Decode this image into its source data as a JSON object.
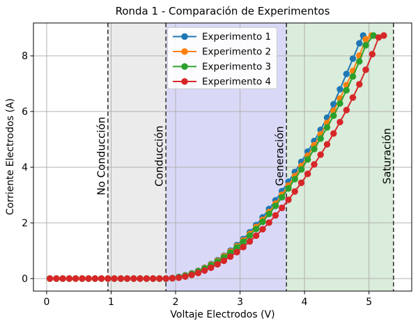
{
  "chart_data": {
    "type": "line",
    "title": "Ronda 1 - Comparación de Experimentos",
    "xlabel": "Voltaje Electrodos (V)",
    "ylabel": "Corriente Electrodos (A)",
    "xlim": [
      -0.205,
      5.663
    ],
    "ylim": [
      -0.45,
      9.18
    ],
    "xticks": [
      0,
      1,
      2,
      3,
      4,
      5
    ],
    "yticks": [
      0,
      2,
      4,
      6,
      8
    ],
    "grid": true,
    "grid_color": "#b0b0b0",
    "legend_position": "upper-left-inside",
    "regions": {
      "vline_color": "#333333",
      "label_center_i": 4.4,
      "boundaries": [
        {
          "label": "No Conducción",
          "v": 0.95
        },
        {
          "label": "Conducción",
          "v": 1.85
        },
        {
          "label": "Generación",
          "v": 3.72
        },
        {
          "label": "Saturación",
          "v": 5.38
        }
      ],
      "spans": [
        {
          "from": 0.95,
          "to": 1.85,
          "color": "#ebebeb"
        },
        {
          "from": 1.85,
          "to": 3.72,
          "color": "#d9d9f7"
        },
        {
          "from": 3.72,
          "to": 5.38,
          "color": "#daecdb"
        }
      ]
    },
    "series": [
      {
        "name": "Experimento 1",
        "color": "#1f77b4",
        "points": [
          [
            0.05,
            0
          ],
          [
            0.15,
            0
          ],
          [
            0.25,
            0
          ],
          [
            0.35,
            0
          ],
          [
            0.45,
            0
          ],
          [
            0.55,
            0
          ],
          [
            0.65,
            0
          ],
          [
            0.75,
            0
          ],
          [
            0.85,
            0
          ],
          [
            0.95,
            0
          ],
          [
            1.05,
            0
          ],
          [
            1.15,
            0
          ],
          [
            1.25,
            0
          ],
          [
            1.35,
            0
          ],
          [
            1.45,
            0
          ],
          [
            1.55,
            0
          ],
          [
            1.65,
            0
          ],
          [
            1.75,
            0
          ],
          [
            1.85,
            0
          ],
          [
            1.95,
            0.02
          ],
          [
            2.05,
            0.06
          ],
          [
            2.15,
            0.12
          ],
          [
            2.25,
            0.19
          ],
          [
            2.35,
            0.28
          ],
          [
            2.45,
            0.39
          ],
          [
            2.55,
            0.52
          ],
          [
            2.65,
            0.66
          ],
          [
            2.75,
            0.82
          ],
          [
            2.85,
            1.0
          ],
          [
            2.95,
            1.2
          ],
          [
            3.05,
            1.42
          ],
          [
            3.15,
            1.66
          ],
          [
            3.25,
            1.92
          ],
          [
            3.35,
            2.2
          ],
          [
            3.45,
            2.5
          ],
          [
            3.55,
            2.81
          ],
          [
            3.65,
            3.14
          ],
          [
            3.75,
            3.48
          ],
          [
            3.85,
            3.83
          ],
          [
            3.95,
            4.19
          ],
          [
            4.05,
            4.56
          ],
          [
            4.15,
            4.94
          ],
          [
            4.25,
            5.34
          ],
          [
            4.35,
            5.78
          ],
          [
            4.45,
            6.26
          ],
          [
            4.55,
            6.8
          ],
          [
            4.65,
            7.35
          ],
          [
            4.75,
            7.9
          ],
          [
            4.85,
            8.45
          ],
          [
            4.91,
            8.73
          ]
        ]
      },
      {
        "name": "Experimento 2",
        "color": "#ff7f0e",
        "points": [
          [
            0.05,
            0
          ],
          [
            0.15,
            0
          ],
          [
            0.25,
            0
          ],
          [
            0.35,
            0
          ],
          [
            0.45,
            0
          ],
          [
            0.55,
            0
          ],
          [
            0.65,
            0
          ],
          [
            0.75,
            0
          ],
          [
            0.85,
            0
          ],
          [
            0.95,
            0
          ],
          [
            1.05,
            0
          ],
          [
            1.15,
            0
          ],
          [
            1.25,
            0
          ],
          [
            1.35,
            0
          ],
          [
            1.45,
            0
          ],
          [
            1.55,
            0
          ],
          [
            1.65,
            0
          ],
          [
            1.75,
            0
          ],
          [
            1.85,
            0
          ],
          [
            1.95,
            0.02
          ],
          [
            2.05,
            0.05
          ],
          [
            2.15,
            0.11
          ],
          [
            2.25,
            0.18
          ],
          [
            2.35,
            0.27
          ],
          [
            2.45,
            0.38
          ],
          [
            2.55,
            0.5
          ],
          [
            2.65,
            0.64
          ],
          [
            2.75,
            0.8
          ],
          [
            2.85,
            0.97
          ],
          [
            2.95,
            1.16
          ],
          [
            3.05,
            1.37
          ],
          [
            3.15,
            1.6
          ],
          [
            3.25,
            1.85
          ],
          [
            3.35,
            2.11
          ],
          [
            3.45,
            2.39
          ],
          [
            3.55,
            2.69
          ],
          [
            3.65,
            3.01
          ],
          [
            3.75,
            3.34
          ],
          [
            3.85,
            3.68
          ],
          [
            3.95,
            4.04
          ],
          [
            4.05,
            4.41
          ],
          [
            4.15,
            4.79
          ],
          [
            4.25,
            5.18
          ],
          [
            4.35,
            5.59
          ],
          [
            4.45,
            6.02
          ],
          [
            4.55,
            6.47
          ],
          [
            4.65,
            6.95
          ],
          [
            4.75,
            7.46
          ],
          [
            4.85,
            8.01
          ],
          [
            4.95,
            8.6
          ],
          [
            5.04,
            8.73
          ]
        ]
      },
      {
        "name": "Experimento 3",
        "color": "#2ca02c",
        "points": [
          [
            0.05,
            0
          ],
          [
            0.15,
            0
          ],
          [
            0.25,
            0
          ],
          [
            0.35,
            0
          ],
          [
            0.45,
            0
          ],
          [
            0.55,
            0
          ],
          [
            0.65,
            0
          ],
          [
            0.75,
            0
          ],
          [
            0.85,
            0
          ],
          [
            0.95,
            0
          ],
          [
            1.05,
            0
          ],
          [
            1.15,
            0
          ],
          [
            1.25,
            0
          ],
          [
            1.35,
            0
          ],
          [
            1.45,
            0
          ],
          [
            1.55,
            0
          ],
          [
            1.65,
            0
          ],
          [
            1.75,
            0
          ],
          [
            1.85,
            0
          ],
          [
            1.95,
            0.01
          ],
          [
            2.05,
            0.05
          ],
          [
            2.15,
            0.1
          ],
          [
            2.25,
            0.17
          ],
          [
            2.35,
            0.26
          ],
          [
            2.45,
            0.36
          ],
          [
            2.55,
            0.48
          ],
          [
            2.65,
            0.61
          ],
          [
            2.75,
            0.76
          ],
          [
            2.85,
            0.93
          ],
          [
            2.95,
            1.12
          ],
          [
            3.05,
            1.32
          ],
          [
            3.15,
            1.54
          ],
          [
            3.25,
            1.78
          ],
          [
            3.35,
            2.04
          ],
          [
            3.45,
            2.32
          ],
          [
            3.55,
            2.61
          ],
          [
            3.65,
            2.92
          ],
          [
            3.75,
            3.24
          ],
          [
            3.85,
            3.57
          ],
          [
            3.95,
            3.92
          ],
          [
            4.05,
            4.28
          ],
          [
            4.15,
            4.65
          ],
          [
            4.25,
            5.03
          ],
          [
            4.35,
            5.43
          ],
          [
            4.45,
            5.85
          ],
          [
            4.55,
            6.29
          ],
          [
            4.65,
            6.76
          ],
          [
            4.75,
            7.26
          ],
          [
            4.85,
            7.8
          ],
          [
            4.95,
            8.38
          ],
          [
            5.07,
            8.73
          ]
        ]
      },
      {
        "name": "Experimento 4",
        "color": "#d62728",
        "points": [
          [
            0.05,
            0
          ],
          [
            0.15,
            0
          ],
          [
            0.25,
            0
          ],
          [
            0.35,
            0
          ],
          [
            0.45,
            0
          ],
          [
            0.55,
            0
          ],
          [
            0.65,
            0
          ],
          [
            0.75,
            0
          ],
          [
            0.85,
            0
          ],
          [
            0.95,
            0
          ],
          [
            1.05,
            0
          ],
          [
            1.15,
            0
          ],
          [
            1.25,
            0
          ],
          [
            1.35,
            0
          ],
          [
            1.45,
            0
          ],
          [
            1.55,
            0
          ],
          [
            1.65,
            0
          ],
          [
            1.75,
            0
          ],
          [
            1.85,
            0
          ],
          [
            1.95,
            0.01
          ],
          [
            2.05,
            0.03
          ],
          [
            2.15,
            0.07
          ],
          [
            2.25,
            0.13
          ],
          [
            2.35,
            0.2
          ],
          [
            2.45,
            0.29
          ],
          [
            2.55,
            0.39
          ],
          [
            2.65,
            0.51
          ],
          [
            2.75,
            0.64
          ],
          [
            2.85,
            0.79
          ],
          [
            2.95,
            0.95
          ],
          [
            3.05,
            1.13
          ],
          [
            3.15,
            1.33
          ],
          [
            3.25,
            1.54
          ],
          [
            3.35,
            1.77
          ],
          [
            3.45,
            2.01
          ],
          [
            3.55,
            2.27
          ],
          [
            3.65,
            2.54
          ],
          [
            3.75,
            2.83
          ],
          [
            3.85,
            3.13
          ],
          [
            3.95,
            3.44
          ],
          [
            4.05,
            3.76
          ],
          [
            4.15,
            4.1
          ],
          [
            4.25,
            4.45
          ],
          [
            4.35,
            4.82
          ],
          [
            4.45,
            5.21
          ],
          [
            4.55,
            5.62
          ],
          [
            4.65,
            6.05
          ],
          [
            4.75,
            6.5
          ],
          [
            4.85,
            6.98
          ],
          [
            4.95,
            7.5
          ],
          [
            5.05,
            8.06
          ],
          [
            5.15,
            8.66
          ],
          [
            5.23,
            8.73
          ]
        ]
      }
    ]
  }
}
